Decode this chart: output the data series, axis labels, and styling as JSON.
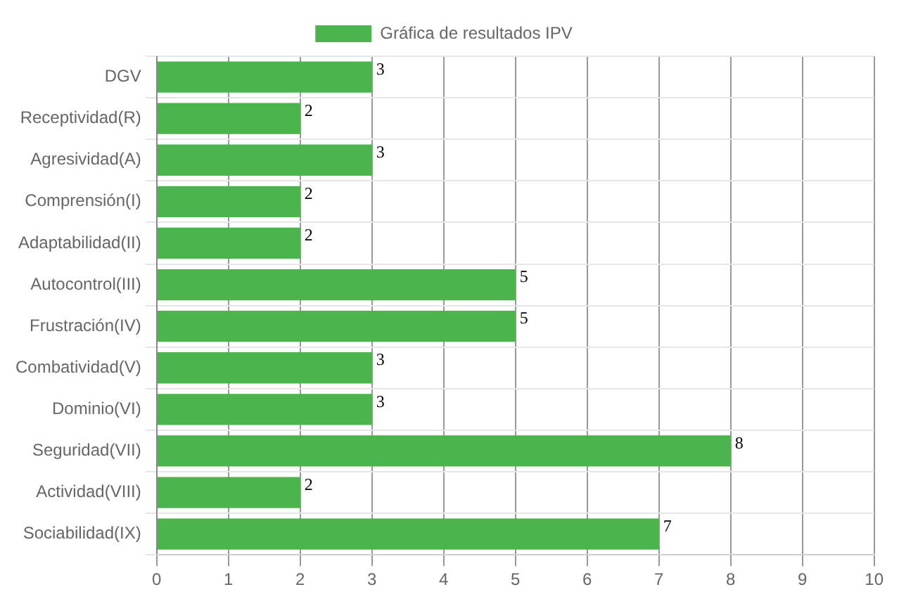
{
  "chart_data": {
    "type": "bar",
    "orientation": "horizontal",
    "categories": [
      "DGV",
      "Receptividad(R)",
      "Agresividad(A)",
      "Comprensión(I)",
      "Adaptabilidad(II)",
      "Autocontrol(III)",
      "Frustración(IV)",
      "Combatividad(V)",
      "Dominio(VI)",
      "Seguridad(VII)",
      "Actividad(VIII)",
      "Sociabilidad(IX)"
    ],
    "series": [
      {
        "name": "Gráfica de resultados IPV",
        "color": "#4cb44c",
        "values": [
          3,
          2,
          3,
          2,
          2,
          5,
          5,
          3,
          3,
          8,
          2,
          7
        ]
      }
    ],
    "xlim": [
      0,
      10
    ],
    "xticks": [
      0,
      1,
      2,
      3,
      4,
      5,
      6,
      7,
      8,
      9,
      10
    ],
    "grid": true,
    "legend": "top",
    "data_labels": true
  }
}
